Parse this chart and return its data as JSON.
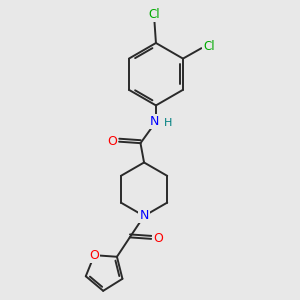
{
  "background_color": "#e8e8e8",
  "bond_color": "#2a2a2a",
  "atom_colors": {
    "O": "#ff0000",
    "N": "#0000ff",
    "Cl": "#00aa00",
    "H": "#008080"
  },
  "bond_width": 1.4,
  "figsize": [
    3.0,
    3.0
  ],
  "dpi": 100
}
